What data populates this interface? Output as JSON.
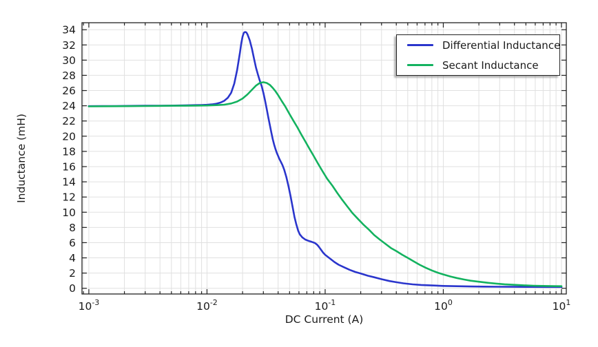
{
  "chart_data": {
    "type": "line",
    "title": "",
    "xlabel": "DC Current (A)",
    "ylabel": "Inductance (mH)",
    "x_scale": "log10",
    "x_range_log": [
      -3.058,
      1.041
    ],
    "y_range": [
      -0.75,
      34.92
    ],
    "x_major_tick_exponents": [
      -3,
      -2,
      -1,
      0,
      1
    ],
    "x_tick_base": "10",
    "y_ticks": [
      0,
      2,
      4,
      6,
      8,
      10,
      12,
      14,
      16,
      18,
      20,
      22,
      24,
      26,
      28,
      30,
      32,
      34
    ],
    "grid": true,
    "colors": {
      "grid": "#e0e0e0",
      "frame": "#202020",
      "text": "#1a1a1a",
      "background": "#ffffff",
      "differential": "#2a35cc",
      "secant": "#13b25f"
    },
    "legend": {
      "position": "top-right",
      "entries": [
        {
          "label": "Differential Inductance",
          "color": "#2a35cc"
        },
        {
          "label": "Secant Inductance",
          "color": "#13b25f"
        }
      ]
    },
    "series": [
      {
        "name": "Differential Inductance",
        "color": "#2a35cc",
        "points": [
          [
            0.001,
            23.95
          ],
          [
            0.0013,
            23.96
          ],
          [
            0.0017,
            23.97
          ],
          [
            0.0022,
            23.98
          ],
          [
            0.003,
            24.0
          ],
          [
            0.004,
            24.0
          ],
          [
            0.005,
            24.02
          ],
          [
            0.0065,
            24.05
          ],
          [
            0.008,
            24.08
          ],
          [
            0.009,
            24.1
          ],
          [
            0.01,
            24.13
          ],
          [
            0.011,
            24.18
          ],
          [
            0.012,
            24.27
          ],
          [
            0.013,
            24.42
          ],
          [
            0.014,
            24.65
          ],
          [
            0.015,
            25.05
          ],
          [
            0.016,
            25.7
          ],
          [
            0.017,
            26.9
          ],
          [
            0.018,
            28.7
          ],
          [
            0.019,
            31.0
          ],
          [
            0.0195,
            32.2
          ],
          [
            0.02,
            33.1
          ],
          [
            0.0205,
            33.6
          ],
          [
            0.021,
            33.7
          ],
          [
            0.0215,
            33.65
          ],
          [
            0.022,
            33.4
          ],
          [
            0.023,
            32.6
          ],
          [
            0.024,
            31.5
          ],
          [
            0.025,
            30.2
          ],
          [
            0.026,
            29.0
          ],
          [
            0.027,
            28.1
          ],
          [
            0.028,
            27.3
          ],
          [
            0.029,
            26.6
          ],
          [
            0.03,
            25.7
          ],
          [
            0.031,
            24.7
          ],
          [
            0.032,
            23.6
          ],
          [
            0.033,
            22.5
          ],
          [
            0.034,
            21.5
          ],
          [
            0.035,
            20.5
          ],
          [
            0.036,
            19.6
          ],
          [
            0.037,
            18.9
          ],
          [
            0.038,
            18.3
          ],
          [
            0.039,
            17.8
          ],
          [
            0.04,
            17.4
          ],
          [
            0.041,
            17.0
          ],
          [
            0.042,
            16.7
          ],
          [
            0.0435,
            16.2
          ],
          [
            0.045,
            15.6
          ],
          [
            0.047,
            14.6
          ],
          [
            0.049,
            13.4
          ],
          [
            0.051,
            12.1
          ],
          [
            0.053,
            10.7
          ],
          [
            0.055,
            9.4
          ],
          [
            0.057,
            8.4
          ],
          [
            0.059,
            7.6
          ],
          [
            0.061,
            7.1
          ],
          [
            0.064,
            6.7
          ],
          [
            0.068,
            6.4
          ],
          [
            0.072,
            6.25
          ],
          [
            0.077,
            6.1
          ],
          [
            0.082,
            5.95
          ],
          [
            0.086,
            5.7
          ],
          [
            0.089,
            5.4
          ],
          [
            0.092,
            5.1
          ],
          [
            0.096,
            4.7
          ],
          [
            0.1,
            4.4
          ],
          [
            0.11,
            3.9
          ],
          [
            0.12,
            3.45
          ],
          [
            0.13,
            3.1
          ],
          [
            0.145,
            2.75
          ],
          [
            0.16,
            2.45
          ],
          [
            0.18,
            2.15
          ],
          [
            0.2,
            1.95
          ],
          [
            0.23,
            1.65
          ],
          [
            0.26,
            1.45
          ],
          [
            0.3,
            1.2
          ],
          [
            0.35,
            0.95
          ],
          [
            0.4,
            0.8
          ],
          [
            0.46,
            0.65
          ],
          [
            0.55,
            0.52
          ],
          [
            0.65,
            0.44
          ],
          [
            0.8,
            0.37
          ],
          [
            1.0,
            0.31
          ],
          [
            1.3,
            0.27
          ],
          [
            1.7,
            0.24
          ],
          [
            2.2,
            0.22
          ],
          [
            3.0,
            0.2
          ],
          [
            4.0,
            0.19
          ],
          [
            5.5,
            0.18
          ],
          [
            7.5,
            0.17
          ],
          [
            10,
            0.17
          ]
        ]
      },
      {
        "name": "Secant Inductance",
        "color": "#13b25f",
        "points": [
          [
            0.001,
            23.92
          ],
          [
            0.0015,
            23.94
          ],
          [
            0.002,
            23.95
          ],
          [
            0.003,
            23.97
          ],
          [
            0.004,
            23.98
          ],
          [
            0.005,
            24.0
          ],
          [
            0.0065,
            24.0
          ],
          [
            0.008,
            24.02
          ],
          [
            0.01,
            24.04
          ],
          [
            0.012,
            24.08
          ],
          [
            0.014,
            24.15
          ],
          [
            0.016,
            24.3
          ],
          [
            0.018,
            24.55
          ],
          [
            0.02,
            24.95
          ],
          [
            0.022,
            25.5
          ],
          [
            0.024,
            26.1
          ],
          [
            0.026,
            26.65
          ],
          [
            0.028,
            27.0
          ],
          [
            0.03,
            27.1
          ],
          [
            0.032,
            27.0
          ],
          [
            0.034,
            26.75
          ],
          [
            0.036,
            26.35
          ],
          [
            0.038,
            25.9
          ],
          [
            0.04,
            25.4
          ],
          [
            0.043,
            24.6
          ],
          [
            0.046,
            23.9
          ],
          [
            0.05,
            22.9
          ],
          [
            0.054,
            22.0
          ],
          [
            0.058,
            21.2
          ],
          [
            0.063,
            20.2
          ],
          [
            0.068,
            19.3
          ],
          [
            0.074,
            18.3
          ],
          [
            0.08,
            17.4
          ],
          [
            0.087,
            16.4
          ],
          [
            0.095,
            15.4
          ],
          [
            0.104,
            14.4
          ],
          [
            0.115,
            13.5
          ],
          [
            0.127,
            12.5
          ],
          [
            0.14,
            11.6
          ],
          [
            0.155,
            10.7
          ],
          [
            0.17,
            9.9
          ],
          [
            0.19,
            9.1
          ],
          [
            0.21,
            8.4
          ],
          [
            0.235,
            7.7
          ],
          [
            0.26,
            7.0
          ],
          [
            0.29,
            6.4
          ],
          [
            0.32,
            5.9
          ],
          [
            0.36,
            5.3
          ],
          [
            0.4,
            4.9
          ],
          [
            0.45,
            4.4
          ],
          [
            0.5,
            4.0
          ],
          [
            0.56,
            3.55
          ],
          [
            0.63,
            3.1
          ],
          [
            0.71,
            2.7
          ],
          [
            0.8,
            2.35
          ],
          [
            0.9,
            2.05
          ],
          [
            1.0,
            1.82
          ],
          [
            1.15,
            1.55
          ],
          [
            1.3,
            1.35
          ],
          [
            1.5,
            1.15
          ],
          [
            1.7,
            1.0
          ],
          [
            2.0,
            0.86
          ],
          [
            2.4,
            0.72
          ],
          [
            2.8,
            0.62
          ],
          [
            3.3,
            0.53
          ],
          [
            4.0,
            0.45
          ],
          [
            4.8,
            0.39
          ],
          [
            5.8,
            0.34
          ],
          [
            7.0,
            0.31
          ],
          [
            8.5,
            0.28
          ],
          [
            10,
            0.27
          ]
        ]
      }
    ]
  }
}
